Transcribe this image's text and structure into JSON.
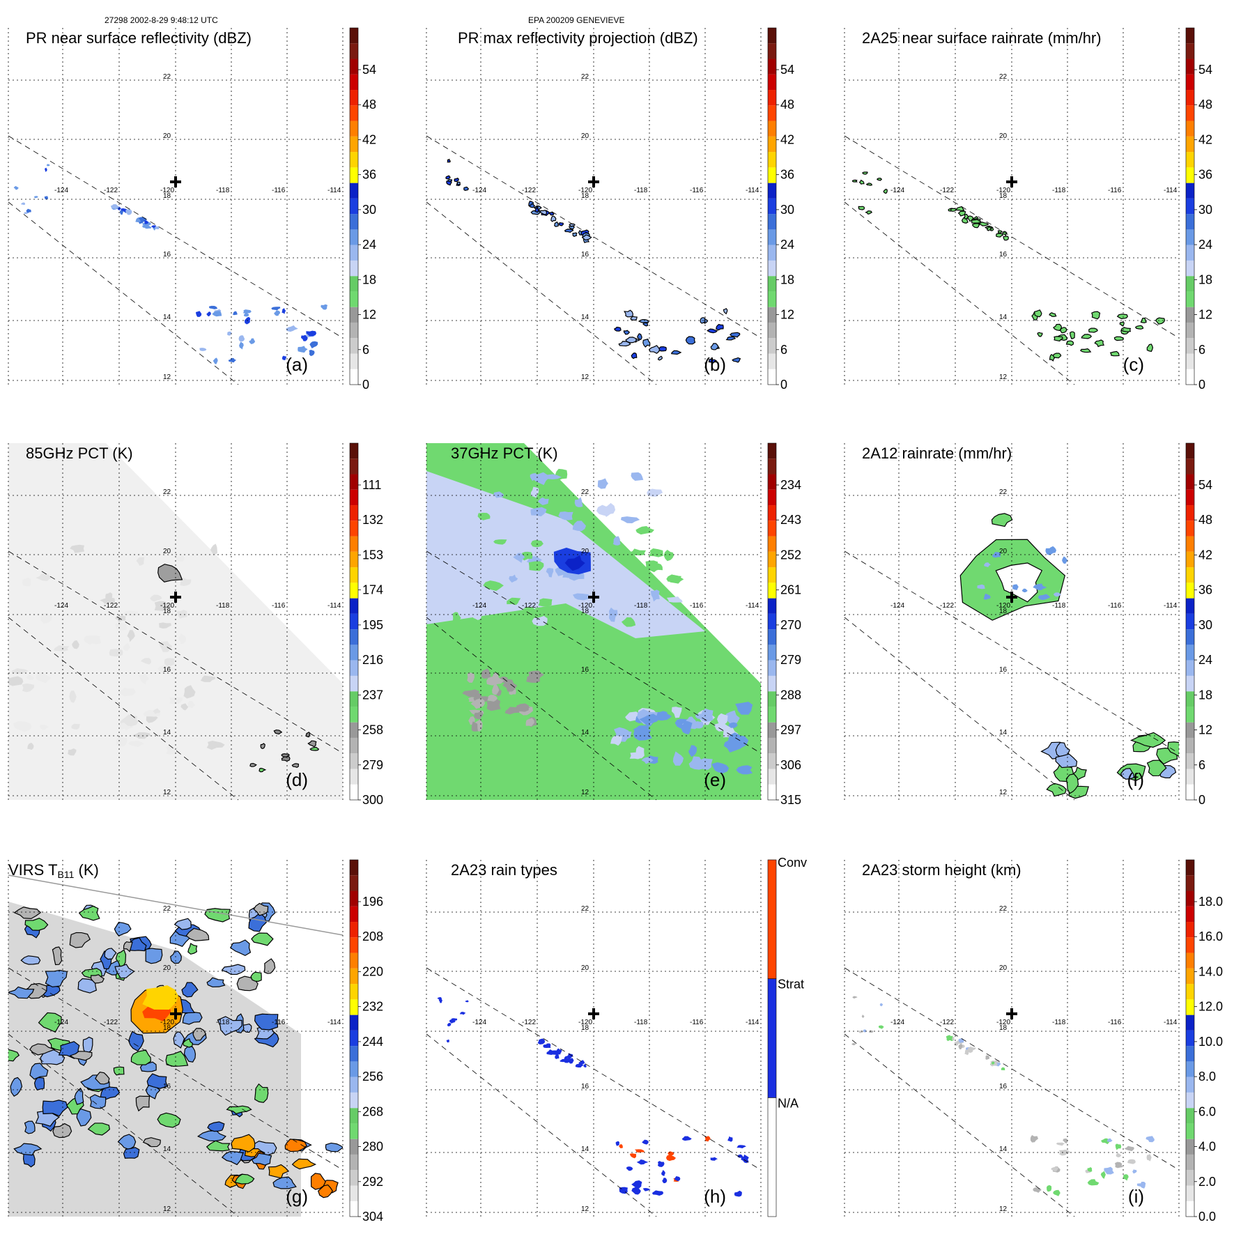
{
  "header": {
    "orbit_time": "27298 2002-8-29 9:48:12 UTC",
    "storm": "EPA 200209 GENEVIEVE"
  },
  "colors": {
    "cbar12": [
      "#ffffff",
      "#e6e6e6",
      "#cccccc",
      "#b3b3b3",
      "#999999",
      "#70d970",
      "#66cc66",
      "#c8d4f5",
      "#9ab7ef",
      "#6a9ae6",
      "#3b6fd9",
      "#1a3ee0",
      "#0b22c7",
      "#ffff00",
      "#ffd400",
      "#ffa500",
      "#ff7f00",
      "#ff4500",
      "#ee2200",
      "#cc0000",
      "#a00000",
      "#7a1a10",
      "#5a1008"
    ],
    "rain_types": [
      "#ffffff",
      "#1a2fe0",
      "#ff4500"
    ]
  },
  "chart_data": [
    {
      "id": "a",
      "type": "map",
      "title": "PR near surface reflectivity (dBZ)",
      "label": "(a)",
      "cbar_ticks": [
        "0",
        "6",
        "12",
        "18",
        "24",
        "30",
        "36",
        "42",
        "48",
        "54"
      ],
      "lon_labels": [
        "-124",
        "-122",
        "-120",
        "-118",
        "-116",
        "-114"
      ],
      "lat_labels": [
        "22",
        "20",
        "18",
        "16",
        "14",
        "12"
      ]
    },
    {
      "id": "b",
      "type": "map",
      "title": "PR max reflectivity projection (dBZ)",
      "label": "(b)",
      "cbar_ticks": [
        "0",
        "6",
        "12",
        "18",
        "24",
        "30",
        "36",
        "42",
        "48",
        "54"
      ],
      "lon_labels": [
        "-124",
        "-122",
        "-120",
        "-118",
        "-116",
        "-114"
      ],
      "lat_labels": [
        "22",
        "20",
        "18",
        "16",
        "14",
        "12"
      ]
    },
    {
      "id": "c",
      "type": "map",
      "title": "2A25 near surface rainrate (mm/hr)",
      "label": "(c)",
      "cbar_ticks": [
        "0",
        "6",
        "12",
        "18",
        "24",
        "30",
        "36",
        "42",
        "48",
        "54"
      ],
      "lon_labels": [
        "-124",
        "-122",
        "-120",
        "-118",
        "-116",
        "-114"
      ],
      "lat_labels": [
        "22",
        "20",
        "18",
        "16",
        "14",
        "12"
      ]
    },
    {
      "id": "d",
      "type": "map",
      "title": "85GHz PCT (K)",
      "label": "(d)",
      "cbar_ticks": [
        "300",
        "279",
        "258",
        "237",
        "216",
        "195",
        "174",
        "153",
        "132",
        "111"
      ],
      "lon_labels": [
        "-124",
        "-122",
        "-120",
        "-118",
        "-116",
        "-114"
      ],
      "lat_labels": [
        "22",
        "20",
        "18",
        "16",
        "14",
        "12"
      ]
    },
    {
      "id": "e",
      "type": "map",
      "title": "37GHz PCT (K)",
      "label": "(e)",
      "cbar_ticks": [
        "315",
        "306",
        "297",
        "288",
        "279",
        "270",
        "261",
        "252",
        "243",
        "234"
      ],
      "lon_labels": [
        "-124",
        "-122",
        "-120",
        "-118",
        "-116",
        "-114"
      ],
      "lat_labels": [
        "22",
        "20",
        "18",
        "16",
        "14",
        "12"
      ]
    },
    {
      "id": "f",
      "type": "map",
      "title": "2A12 rainrate (mm/hr)",
      "label": "(f)",
      "cbar_ticks": [
        "0",
        "6",
        "12",
        "18",
        "24",
        "30",
        "36",
        "42",
        "48",
        "54"
      ],
      "lon_labels": [
        "-124",
        "-122",
        "-120",
        "-118",
        "-116",
        "-114"
      ],
      "lat_labels": [
        "22",
        "20",
        "18",
        "16",
        "14",
        "12"
      ]
    },
    {
      "id": "g",
      "type": "map",
      "title_main": "VIRS T",
      "title_sub": "B11",
      "title_end": " (K)",
      "label": "(g)",
      "cbar_ticks": [
        "304",
        "292",
        "280",
        "268",
        "256",
        "244",
        "232",
        "220",
        "208",
        "196"
      ],
      "lon_labels": [
        "-124",
        "-122",
        "-120",
        "-118",
        "-116",
        "-114"
      ],
      "lat_labels": [
        "22",
        "20",
        "18",
        "16",
        "14",
        "12"
      ]
    },
    {
      "id": "h",
      "type": "map",
      "title": "2A23 rain types",
      "label": "(h)",
      "cbar_ticks": [
        "N/A",
        "Strat",
        "Conv"
      ],
      "lon_labels": [
        "-124",
        "-122",
        "-120",
        "-118",
        "-116",
        "-114"
      ],
      "lat_labels": [
        "22",
        "20",
        "18",
        "16",
        "14",
        "12"
      ]
    },
    {
      "id": "i",
      "type": "map",
      "title": "2A23 storm height (km)",
      "label": "(i)",
      "cbar_ticks": [
        "0.0",
        "2.0",
        "4.0",
        "6.0",
        "8.0",
        "10.0",
        "12.0",
        "14.0",
        "16.0",
        "18.0"
      ],
      "lon_labels": [
        "-124",
        "-122",
        "-120",
        "-118",
        "-116",
        "-114"
      ],
      "lat_labels": [
        "22",
        "20",
        "18",
        "16",
        "14",
        "12"
      ]
    }
  ]
}
